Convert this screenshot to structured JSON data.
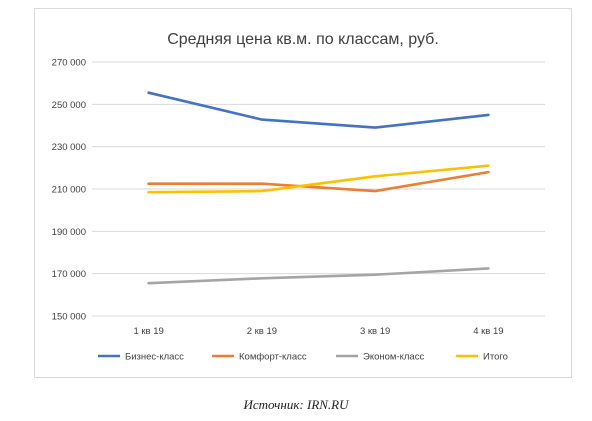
{
  "chart_data": {
    "type": "line",
    "title": "Средняя цена кв.м. по классам, руб.",
    "categories": [
      "1 кв 19",
      "2 кв 19",
      "3 кв 19",
      "4 кв 19"
    ],
    "ylim": [
      150000,
      270000
    ],
    "y_ticks": [
      "150 000",
      "170 000",
      "190 000",
      "210 000",
      "230 000",
      "250 000",
      "270 000"
    ],
    "y_tick_values": [
      150000,
      170000,
      190000,
      210000,
      230000,
      250000,
      270000
    ],
    "grid": true,
    "legend_position": "bottom",
    "series": [
      {
        "name": "Бизнес-класс",
        "color": "#4472c4",
        "values": [
          255500,
          242800,
          239000,
          245000
        ]
      },
      {
        "name": "Комфорт-класс",
        "color": "#ed7d31",
        "values": [
          212500,
          212500,
          209000,
          218000
        ]
      },
      {
        "name": "Эконом-класс",
        "color": "#a5a5a5",
        "values": [
          165500,
          167800,
          169500,
          172500
        ]
      },
      {
        "name": "Итого",
        "color": "#ffc000",
        "values": [
          208500,
          209000,
          216000,
          221000
        ]
      }
    ]
  },
  "source": "Источник: IRN.RU"
}
